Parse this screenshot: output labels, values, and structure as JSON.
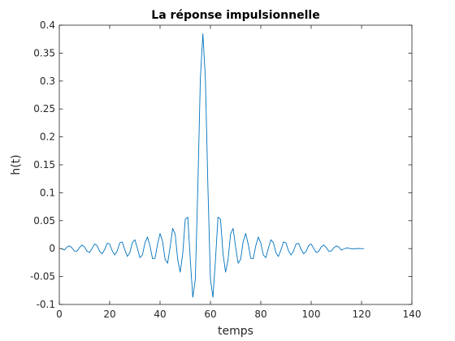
{
  "chart_data": {
    "type": "line",
    "title": "La réponse impulsionnelle",
    "xlabel": "temps",
    "ylabel": "h(t)",
    "xlim": [
      0,
      140
    ],
    "ylim": [
      -0.1,
      0.4
    ],
    "xticks": [
      0,
      20,
      40,
      60,
      80,
      100,
      120,
      140
    ],
    "yticks": [
      -0.1,
      -0.05,
      0,
      0.05,
      0.1,
      0.15,
      0.2,
      0.25,
      0.3,
      0.35,
      0.4
    ],
    "ytick_labels": [
      "-0.1",
      "-0.05",
      "0",
      "0.05",
      "0.1",
      "0.15",
      "0.2",
      "0.25",
      "0.3",
      "0.35",
      "0.4"
    ],
    "grid": false,
    "legend": "none",
    "series": [
      {
        "color": "#0072bd",
        "x": [
          1,
          2,
          3,
          4,
          5,
          6,
          7,
          8,
          9,
          10,
          11,
          12,
          13,
          14,
          15,
          16,
          17,
          18,
          19,
          20,
          21,
          22,
          23,
          24,
          25,
          26,
          27,
          28,
          29,
          30,
          31,
          32,
          33,
          34,
          35,
          36,
          37,
          38,
          39,
          40,
          41,
          42,
          43,
          44,
          45,
          46,
          47,
          48,
          49,
          50,
          51,
          52,
          53,
          54,
          55,
          56,
          57,
          58,
          59,
          60,
          61,
          62,
          63,
          64,
          65,
          66,
          67,
          68,
          69,
          70,
          71,
          72,
          73,
          74,
          75,
          76,
          77,
          78,
          79,
          80,
          81,
          82,
          83,
          84,
          85,
          86,
          87,
          88,
          89,
          90,
          91,
          92,
          93,
          94,
          95,
          96,
          97,
          98,
          99,
          100,
          101,
          102,
          103,
          104,
          105,
          106,
          107,
          108,
          109,
          110,
          111,
          112,
          113,
          114,
          115,
          116,
          117,
          118,
          119,
          120,
          121
        ],
        "y": [
          -0.0006,
          -0.0025,
          0.0026,
          0.0049,
          0.0016,
          -0.0044,
          -0.0047,
          0.0017,
          0.0065,
          0.003,
          -0.0048,
          -0.0069,
          0.0002,
          0.0082,
          0.0056,
          -0.0049,
          -0.0092,
          -0.0015,
          0.0094,
          0.0083,
          -0.0039,
          -0.0116,
          -0.0041,
          0.0103,
          0.0119,
          -0.0022,
          -0.0141,
          -0.0073,
          0.0106,
          0.0159,
          0.0006,
          -0.0162,
          -0.0116,
          0.01,
          0.0208,
          0.0051,
          -0.0179,
          -0.0174,
          0.0079,
          0.0271,
          0.0127,
          -0.0191,
          -0.0262,
          0.0029,
          0.0361,
          0.0261,
          -0.0197,
          -0.0422,
          -0.0092,
          0.0525,
          0.0563,
          -0.0197,
          -0.0872,
          -0.0547,
          0.1099,
          0.3045,
          0.3847,
          0.3045,
          0.1099,
          -0.0547,
          -0.0872,
          -0.0197,
          0.0563,
          0.0525,
          -0.0092,
          -0.0422,
          -0.0197,
          0.0261,
          0.0361,
          0.0029,
          -0.0262,
          -0.0191,
          0.0127,
          0.0271,
          0.0079,
          -0.0174,
          -0.0179,
          0.0051,
          0.0208,
          0.01,
          -0.0116,
          -0.0162,
          0.0006,
          0.0159,
          0.0106,
          -0.0073,
          -0.0141,
          -0.0022,
          0.0119,
          0.0103,
          -0.0041,
          -0.0116,
          -0.0039,
          0.0083,
          0.0094,
          -0.0015,
          -0.0092,
          -0.0049,
          0.0056,
          0.0082,
          0.0002,
          -0.0069,
          -0.0048,
          0.003,
          0.0065,
          0.0017,
          -0.0047,
          -0.0044,
          0.0016,
          0.0049,
          0.0026,
          -0.0025,
          -0.0006,
          0.0012,
          0.0006,
          -0.0004,
          -0.0003,
          0.0001,
          0.0002,
          0,
          -0.0001
        ]
      }
    ]
  }
}
